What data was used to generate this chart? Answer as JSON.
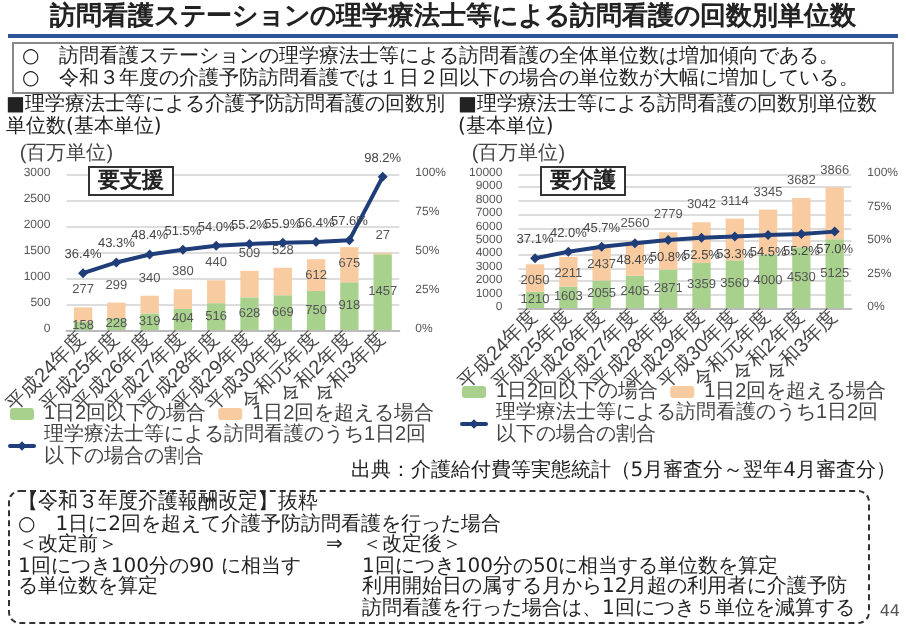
{
  "chart_data": [
    {
      "type": "other",
      "title": "訪問看護ステーションの理学療法士等による訪問看護の回数別単位数",
      "annotations": [
        "○　訪問看護ステーションの理学療法士等による訪問看護の全体単位数は増加傾向である。",
        "○　令和３年度の介護予防訪問看護では１日２回以下の場合の単位数が大幅に増加している。"
      ]
    },
    {
      "type": "bar",
      "title": "■理学療法士等による介護予防訪問看護の回数別単位数(基本単位)",
      "ylabel": "(百万単位)",
      "annotations": [
        "要支援"
      ],
      "categories": [
        "平成24年度",
        "平成25年度",
        "平成26年度",
        "平成27年度",
        "平成28年度",
        "平成29年度",
        "平成30年度",
        "令和元年度",
        "令和2年度",
        "令和3年度"
      ],
      "stacked": true,
      "series": [
        {
          "name": "1日2回以下の場合",
          "color": "#a9d18e",
          "values": [
            158,
            228,
            319,
            404,
            516,
            628,
            669,
            750,
            918,
            1457
          ],
          "value_labels": [
            "158",
            "228",
            "319",
            "404",
            "516",
            "628",
            "669",
            "750",
            "918",
            "1457"
          ]
        },
        {
          "name": "1日2回を超える場合",
          "color": "#f8cba0",
          "values": [
            277,
            299,
            340,
            380,
            440,
            509,
            528,
            612,
            675,
            27
          ],
          "value_labels": [
            "277",
            "299",
            "340",
            "380",
            "440",
            "509",
            "528",
            "612",
            "675",
            "27"
          ]
        },
        {
          "name": "理学療法士等による訪問看護のうち1日2回以下の場合の割合",
          "type": "line",
          "axis": "y2",
          "color": "#1f3e79",
          "values": [
            36.4,
            43.3,
            48.4,
            51.5,
            54.0,
            55.2,
            55.9,
            56.4,
            57.6,
            98.2
          ],
          "value_labels": [
            "36.4%",
            "43.3%",
            "48.4%",
            "51.5%",
            "54.0%",
            "55.2%",
            "55.9%",
            "56.4%",
            "57.6%",
            "98.2%"
          ]
        }
      ],
      "ylim": [
        0,
        3000
      ],
      "yticks": [
        0,
        500,
        1000,
        1500,
        2000,
        2500,
        3000
      ],
      "y2lim": [
        0,
        100
      ],
      "y2ticks": [
        {
          "value": 0,
          "label": "0%"
        },
        {
          "value": 25,
          "label": "25%"
        },
        {
          "value": 50,
          "label": "50%"
        },
        {
          "value": 75,
          "label": "75%"
        },
        {
          "value": 100,
          "label": "100%"
        }
      ],
      "grid": "y",
      "legend": "bottom",
      "marker": "diamond"
    },
    {
      "type": "bar",
      "title": "■理学療法士等による訪問看護の回数別単位数(基本単位)",
      "ylabel": "(百万単位)",
      "annotations": [
        "要介護",
        "出典：介護給付費等実態統計（5月審査分～翌年4月審査分）"
      ],
      "categories": [
        "平成24年度",
        "平成25年度",
        "平成26年度",
        "平成27年度",
        "平成28年度",
        "平成29年度",
        "平成30年度",
        "令和元年度",
        "令和2年度",
        "令和3年度"
      ],
      "stacked": true,
      "series": [
        {
          "name": "1日2回以下の場合",
          "color": "#a9d18e",
          "values": [
            1210,
            1603,
            2055,
            2405,
            2871,
            3359,
            3560,
            4000,
            4530,
            5125
          ],
          "value_labels": [
            "1210",
            "1603",
            "2055",
            "2405",
            "2871",
            "3359",
            "3560",
            "4000",
            "4530",
            "5125"
          ]
        },
        {
          "name": "1日2回を超える場合",
          "color": "#f8cba0",
          "values": [
            2050,
            2211,
            2437,
            2560,
            2779,
            3042,
            3114,
            3345,
            3682,
            3866
          ],
          "value_labels": [
            "2050",
            "2211",
            "2437",
            "2560",
            "2779",
            "3042",
            "3114",
            "3345",
            "3682",
            "3866"
          ]
        },
        {
          "name": "理学療法士等による訪問看護のうち1日2回以下の場合の割合",
          "type": "line",
          "axis": "y2",
          "color": "#1f3e79",
          "values": [
            37.1,
            42.0,
            45.7,
            48.4,
            50.8,
            52.5,
            53.3,
            54.5,
            55.2,
            57.0
          ],
          "value_labels": [
            "37.1%",
            "42.0%",
            "45.7%",
            "48.4%",
            "50.8%",
            "52.5%",
            "53.3%",
            "54.5%",
            "55.2%",
            "57.0%"
          ]
        }
      ],
      "ylim": [
        0,
        10000
      ],
      "yticks": [
        0,
        1000,
        2000,
        3000,
        4000,
        5000,
        6000,
        7000,
        8000,
        9000,
        10000
      ],
      "y2lim": [
        0,
        100
      ],
      "y2ticks": [
        {
          "value": 0,
          "label": "0%"
        },
        {
          "value": 25,
          "label": "25%"
        },
        {
          "value": 50,
          "label": "50%"
        },
        {
          "value": 75,
          "label": "75%"
        },
        {
          "value": 100,
          "label": "100%"
        }
      ],
      "grid": "y",
      "legend": "bottom",
      "marker": "diamond"
    },
    {
      "type": "other",
      "annotations": [
        "【令和３年度介護報酬改定】抜粋",
        "○　1日に2回を超えて介護予防訪問看護を行った場合",
        "＜改定前＞",
        "⇒",
        "＜改定後＞",
        "1回につき100分の90 に相当する単位数を算定",
        "1回につき100分の50に相当する単位数を算定",
        "利用開始日の属する月から12月超の利用者に介護予防訪問看護を行った場合は、1回につき５単位を減算する",
        "44"
      ]
    }
  ]
}
